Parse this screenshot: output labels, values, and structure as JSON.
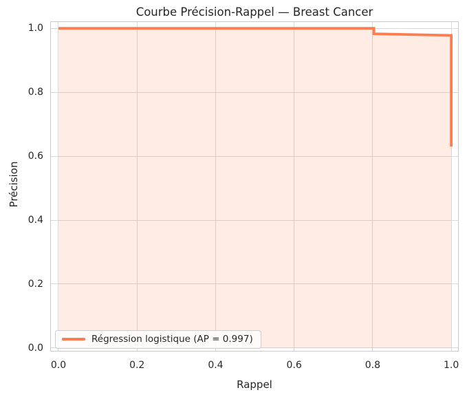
{
  "chart_data": {
    "type": "line",
    "title": "Courbe Précision-Rappel — Breast Cancer",
    "xlabel": "Rappel",
    "ylabel": "Précision",
    "grid": true,
    "xlim": [
      -0.021,
      1.019
    ],
    "ylim": [
      -0.011,
      1.022
    ],
    "x_ticks": [
      0.0,
      0.2,
      0.4,
      0.6,
      0.8,
      1.0
    ],
    "x_tick_labels": [
      "0.0",
      "0.2",
      "0.4",
      "0.6",
      "0.8",
      "1.0"
    ],
    "y_ticks": [
      0.0,
      0.2,
      0.4,
      0.6,
      0.8,
      1.0
    ],
    "y_tick_labels": [
      "0.0",
      "0.2",
      "0.4",
      "0.6",
      "0.8",
      "1.0"
    ],
    "series": [
      {
        "name": "Régression logistique (AP = 0.997)",
        "average_precision": 0.997,
        "color": "#fc7e50",
        "fill_below": true,
        "fill_opacity": 0.15,
        "points": [
          [
            0.0,
            1.0
          ],
          [
            0.803,
            1.0
          ],
          [
            0.803,
            0.983
          ],
          [
            0.997,
            0.978
          ],
          [
            1.0,
            0.978
          ],
          [
            1.0,
            0.63
          ]
        ]
      }
    ],
    "legend": {
      "position": "lower-left",
      "entries": [
        {
          "label": "Régression logistique (AP = 0.997)",
          "color": "#fc7e50"
        }
      ]
    },
    "colors": {
      "grid": "#d9d9d9",
      "spine": "#c9c9c9",
      "text": "#262626",
      "background": "#ffffff"
    }
  }
}
